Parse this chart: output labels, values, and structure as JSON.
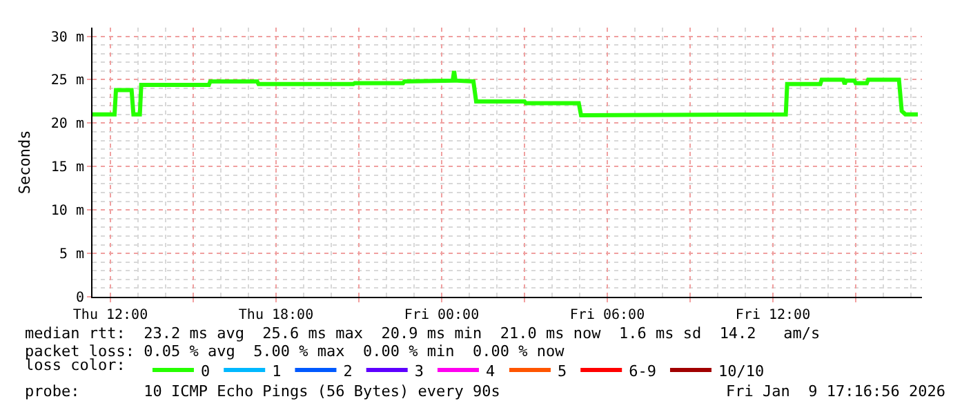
{
  "chart_data": {
    "type": "line",
    "ylabel": "Seconds",
    "legend_title": "loss color:",
    "xlim": [
      "2026-01-08T11:21",
      "2026-01-09T17:24"
    ],
    "xticks": [
      {
        "value": "2026-01-08T12:00",
        "label": "Thu 12:00"
      },
      {
        "value": "2026-01-08T15:00",
        "label": null
      },
      {
        "value": "2026-01-08T18:00",
        "label": "Thu 18:00"
      },
      {
        "value": "2026-01-08T21:00",
        "label": null
      },
      {
        "value": "2026-01-09T00:00",
        "label": "Fri 00:00"
      },
      {
        "value": "2026-01-09T03:00",
        "label": null
      },
      {
        "value": "2026-01-09T06:00",
        "label": "Fri 06:00"
      },
      {
        "value": "2026-01-09T09:00",
        "label": null
      },
      {
        "value": "2026-01-09T12:00",
        "label": "Fri 12:00"
      },
      {
        "value": "2026-01-09T15:00",
        "label": null
      }
    ],
    "ylim": [
      0,
      31
    ],
    "yticks": [
      0,
      {
        "value": 5,
        "label": "5 m"
      },
      {
        "value": 10,
        "label": "10 m"
      },
      {
        "value": 15,
        "label": "15 m"
      },
      {
        "value": 20,
        "label": "20 m"
      },
      {
        "value": 25,
        "label": "25 m"
      },
      {
        "value": 30,
        "label": "30 m"
      }
    ],
    "grid": true,
    "legend": "bottom",
    "x": [
      "2026-01-08T11:21",
      "2026-01-08T12:09",
      "2026-01-08T12:12",
      "2026-01-08T12:46",
      "2026-01-08T12:50",
      "2026-01-08T13:04",
      "2026-01-08T13:07",
      "2026-01-08T15:34",
      "2026-01-08T15:37",
      "2026-01-08T17:19",
      "2026-01-08T17:22",
      "2026-01-08T20:48",
      "2026-01-08T20:51",
      "2026-01-08T22:36",
      "2026-01-08T22:39",
      "2026-01-09T00:24",
      "2026-01-09T00:27",
      "2026-01-09T00:30",
      "2026-01-09T01:09",
      "2026-01-09T01:15",
      "2026-01-09T03:00",
      "2026-01-09T03:03",
      "2026-01-09T04:58",
      "2026-01-09T05:03",
      "2026-01-09T12:28",
      "2026-01-09T12:31",
      "2026-01-09T13:43",
      "2026-01-09T13:46",
      "2026-01-09T14:33",
      "2026-01-09T14:36",
      "2026-01-09T14:39",
      "2026-01-09T14:57",
      "2026-01-09T15:00",
      "2026-01-09T15:24",
      "2026-01-09T15:27",
      "2026-01-09T16:34",
      "2026-01-09T16:40",
      "2026-01-09T16:48",
      "2026-01-09T17:15"
    ],
    "series": [
      {
        "name": "0",
        "color": "#26ff00",
        "values": [
          21.0,
          21.0,
          23.8,
          23.8,
          21.0,
          21.0,
          24.4,
          24.4,
          24.8,
          24.8,
          24.5,
          24.5,
          24.6,
          24.6,
          24.8,
          24.9,
          26.0,
          24.9,
          24.8,
          22.5,
          22.5,
          22.3,
          22.3,
          20.9,
          21.0,
          24.5,
          24.5,
          25.0,
          25.0,
          24.5,
          24.9,
          24.9,
          24.6,
          24.6,
          25.0,
          25.0,
          21.4,
          21.0,
          21.0
        ]
      },
      {
        "name": "1",
        "color": "#00b8ff",
        "values": [
          null,
          null,
          null,
          null,
          null,
          null,
          null,
          null,
          null,
          null,
          null,
          null,
          null,
          null,
          null,
          null,
          null,
          null,
          null,
          null,
          null,
          null,
          null,
          null,
          null,
          null,
          null,
          null,
          null,
          null,
          null,
          null,
          null,
          null,
          null,
          null,
          null,
          null,
          null
        ]
      },
      {
        "name": "2",
        "color": "#0059ff",
        "values": [
          null,
          null,
          null,
          null,
          null,
          null,
          null,
          null,
          null,
          null,
          null,
          null,
          null,
          null,
          null,
          null,
          null,
          null,
          null,
          null,
          null,
          null,
          null,
          null,
          null,
          null,
          null,
          null,
          null,
          null,
          null,
          null,
          null,
          null,
          null,
          null,
          null,
          null,
          null
        ]
      },
      {
        "name": "3",
        "color": "#5e00ff",
        "values": [
          null,
          null,
          null,
          null,
          null,
          null,
          null,
          null,
          null,
          null,
          null,
          null,
          null,
          null,
          null,
          null,
          null,
          null,
          null,
          null,
          null,
          null,
          null,
          null,
          null,
          null,
          null,
          null,
          null,
          null,
          null,
          null,
          null,
          null,
          null,
          null,
          null,
          null,
          null
        ]
      },
      {
        "name": "4",
        "color": "#ff00f0",
        "values": [
          null,
          null,
          null,
          null,
          null,
          null,
          null,
          null,
          null,
          null,
          null,
          null,
          null,
          null,
          null,
          null,
          null,
          null,
          null,
          null,
          null,
          null,
          null,
          null,
          null,
          null,
          null,
          null,
          null,
          null,
          null,
          null,
          null,
          null,
          null,
          null,
          null,
          null,
          null
        ]
      },
      {
        "name": "5",
        "color": "#ff5500",
        "values": [
          null,
          null,
          null,
          null,
          null,
          null,
          null,
          null,
          null,
          null,
          null,
          null,
          null,
          null,
          null,
          null,
          null,
          null,
          null,
          null,
          null,
          null,
          null,
          null,
          null,
          null,
          null,
          null,
          null,
          null,
          null,
          null,
          null,
          null,
          null,
          null,
          null,
          null,
          null
        ]
      },
      {
        "name": "6-9",
        "color": "#ff0000",
        "values": [
          null,
          null,
          null,
          null,
          null,
          null,
          null,
          null,
          null,
          null,
          null,
          null,
          null,
          null,
          null,
          null,
          null,
          null,
          null,
          null,
          null,
          null,
          null,
          null,
          null,
          null,
          null,
          null,
          null,
          null,
          null,
          null,
          null,
          null,
          null,
          null,
          null,
          null,
          null
        ]
      },
      {
        "name": "10/10",
        "color": "#a10000",
        "values": [
          null,
          null,
          null,
          null,
          null,
          null,
          null,
          null,
          null,
          null,
          null,
          null,
          null,
          null,
          null,
          null,
          null,
          null,
          null,
          null,
          null,
          null,
          null,
          null,
          null,
          null,
          null,
          null,
          null,
          null,
          null,
          null,
          null,
          null,
          null,
          null,
          null,
          null,
          null
        ]
      }
    ],
    "annotations": [
      "median rtt:  23.2 ms avg  25.6 ms max  20.9 ms min  21.0 ms now  1.6 ms sd  14.2   am/s",
      "packet loss: 0.05 % avg  5.00 % max  0.00 % min  0.00 % now",
      "probe:       10 ICMP Echo Pings (56 Bytes) every 90s",
      "Fri Jan  9 17:16:56 2026"
    ]
  }
}
